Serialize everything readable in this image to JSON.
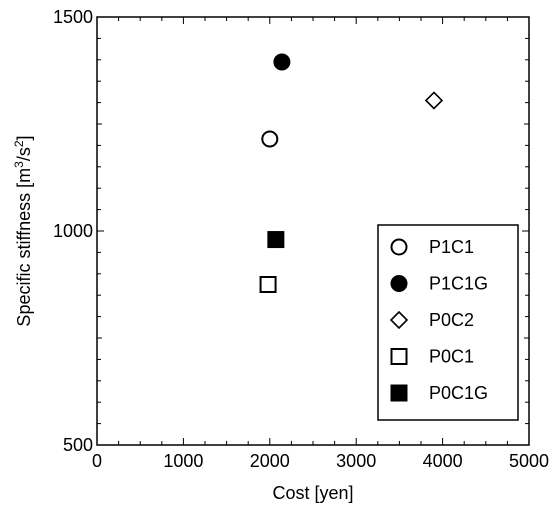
{
  "chart_data": {
    "type": "scatter",
    "xlabel": "Cost [yen]",
    "ylabel": {
      "text": "Specific stiffness [m",
      "sup1": "3",
      "mid": "/s",
      "sup2": "2",
      "end": "]"
    },
    "xlim": [
      0,
      5000
    ],
    "ylim": [
      500,
      1500
    ],
    "xticks": [
      "0",
      "1000",
      "2000",
      "3000",
      "4000",
      "5000"
    ],
    "yticks": [
      "500",
      "1000",
      "1500"
    ],
    "grid": false,
    "legend_position": "bottom-right",
    "series": [
      {
        "name": "P1C1",
        "marker": "circle-open",
        "x": 2000,
        "y": 1215
      },
      {
        "name": "P1C1G",
        "marker": "circle-filled",
        "x": 2140,
        "y": 1395
      },
      {
        "name": "P0C2",
        "marker": "diamond-open",
        "x": 3900,
        "y": 1305
      },
      {
        "name": "P0C1",
        "marker": "square-open",
        "x": 1980,
        "y": 875
      },
      {
        "name": "P0C1G",
        "marker": "square-filled",
        "x": 2070,
        "y": 980
      }
    ]
  }
}
